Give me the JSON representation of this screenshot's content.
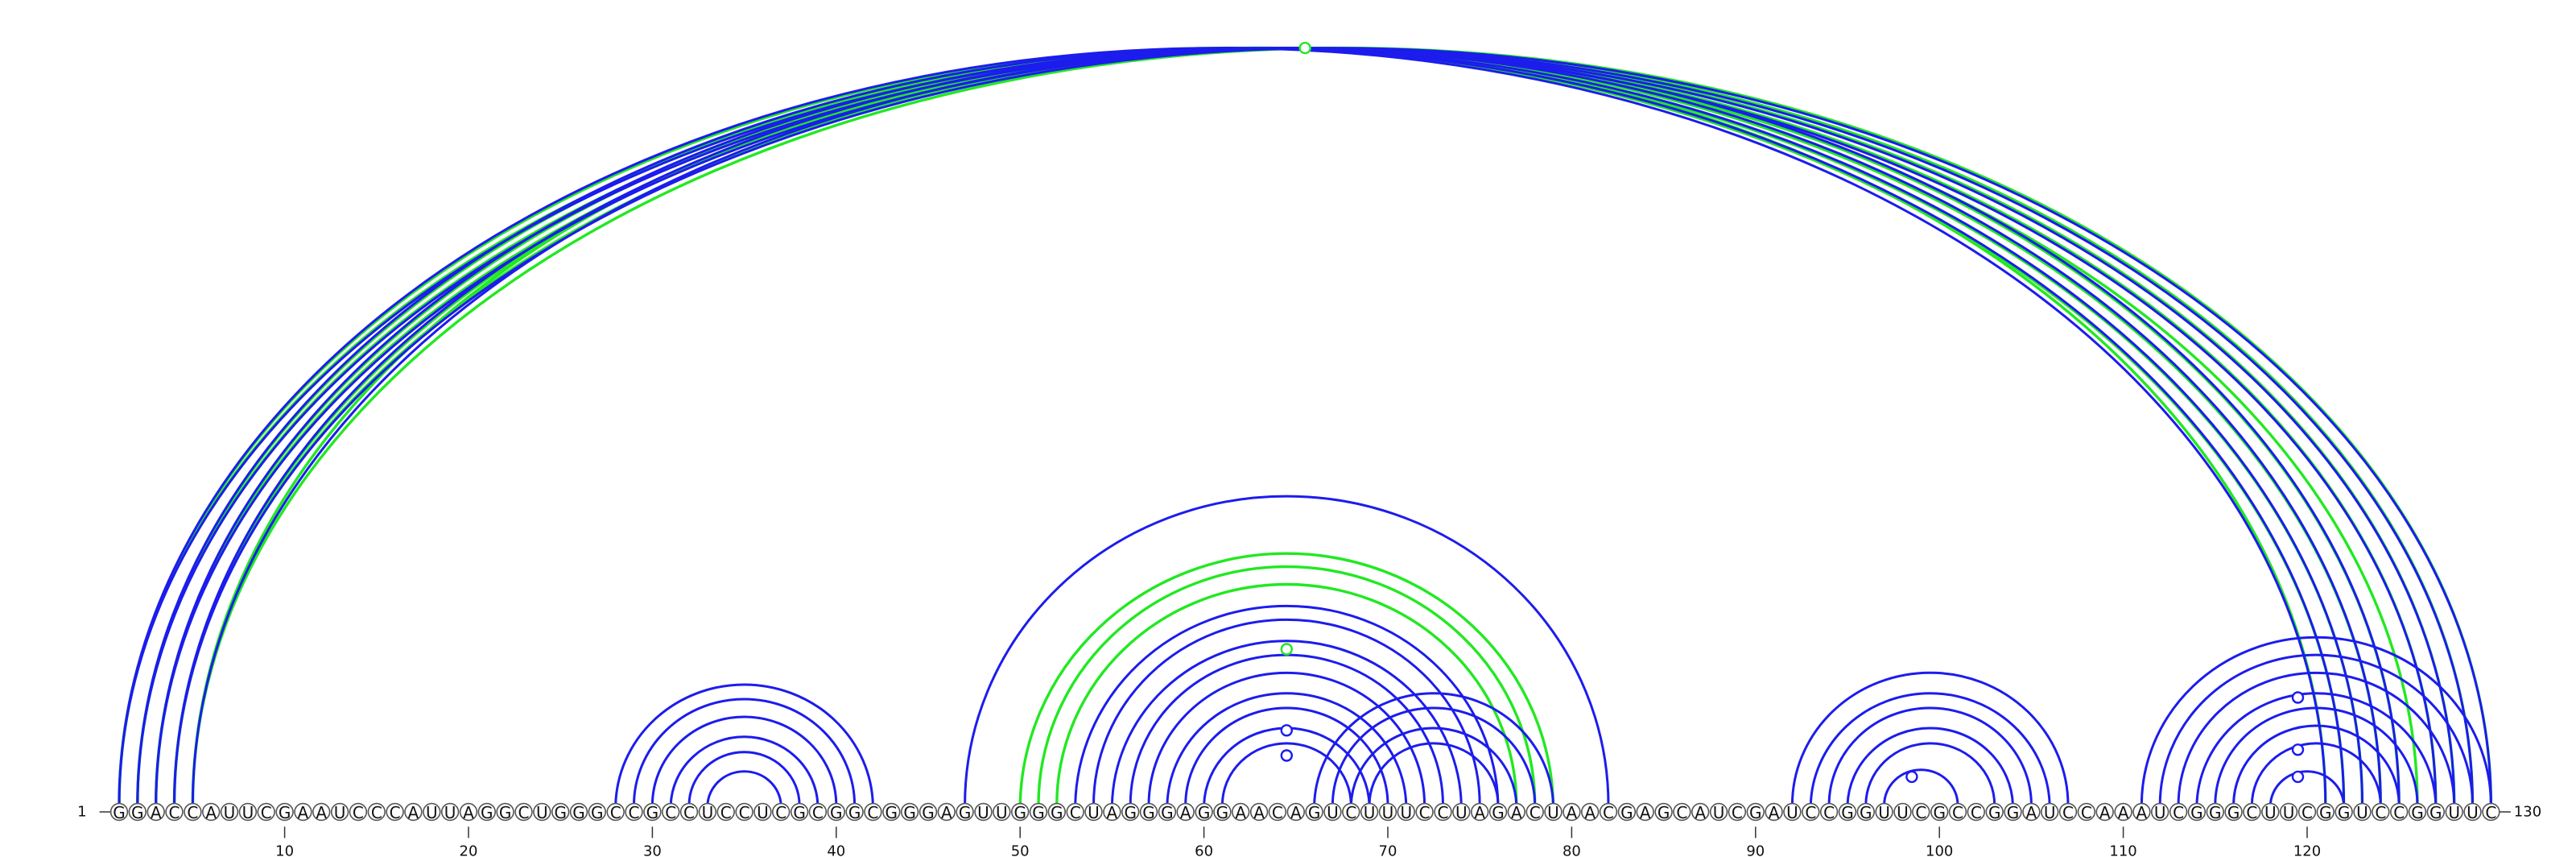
{
  "sequence": "GGACCAUUCGAAUCCCAUUAGGCUGGGCCGCCUCCUCGCGGCGGGAGUUGGGCUAGGGAGGAACAGUCUUUCCUAGACUAACGAGCAUCGAUCCGGUUCGCCGGAUCCAAAUCGGGCUUCGGUCCGGUUC",
  "start_label": "1",
  "end_label": "130",
  "ticks": [
    "10",
    "20",
    "30",
    "40",
    "50",
    "60",
    "70",
    "80",
    "90",
    "100",
    "110",
    "120"
  ],
  "colors": {
    "pair": "#1c1ced",
    "alt_pair": "#22e822"
  },
  "pairs": [
    [
      1,
      121
    ],
    [
      2,
      122
    ],
    [
      3,
      123
    ],
    [
      4,
      124
    ],
    [
      5,
      125
    ],
    [
      1,
      127
    ],
    [
      2,
      128
    ],
    [
      3,
      129
    ],
    [
      4,
      130
    ],
    [
      28,
      42
    ],
    [
      29,
      41
    ],
    [
      30,
      40
    ],
    [
      31,
      39
    ],
    [
      32,
      38
    ],
    [
      33,
      37
    ],
    [
      47,
      82
    ],
    [
      53,
      76
    ],
    [
      54,
      75
    ],
    [
      55,
      74
    ],
    [
      56,
      73
    ],
    [
      57,
      72
    ],
    [
      58,
      71
    ],
    [
      59,
      70
    ],
    [
      60,
      69
    ],
    [
      61,
      68
    ],
    [
      66,
      79
    ],
    [
      67,
      78
    ],
    [
      68,
      77
    ],
    [
      69,
      76
    ],
    [
      92,
      107
    ],
    [
      93,
      106
    ],
    [
      94,
      105
    ],
    [
      95,
      104
    ],
    [
      96,
      103
    ],
    [
      97,
      101
    ],
    [
      111,
      130
    ],
    [
      112,
      129
    ],
    [
      113,
      128
    ],
    [
      114,
      127
    ],
    [
      115,
      126
    ],
    [
      116,
      125
    ],
    [
      117,
      124
    ],
    [
      118,
      122
    ]
  ],
  "alt_pairs": [
    [
      1,
      122
    ],
    [
      2,
      123
    ],
    [
      3,
      124
    ],
    [
      4,
      125
    ],
    [
      5,
      121
    ],
    [
      1,
      126
    ],
    [
      2,
      127
    ],
    [
      3,
      128
    ],
    [
      4,
      129
    ],
    [
      5,
      130
    ],
    [
      50,
      79
    ],
    [
      51,
      78
    ],
    [
      52,
      77
    ]
  ],
  "pair_markers": [
    {
      "pos": 64.5,
      "level": 0.62,
      "color": "pair"
    },
    {
      "pos": 64.5,
      "level": 0.75,
      "color": "pair"
    },
    {
      "pos": 98.5,
      "level": 0.86,
      "color": "pair"
    },
    {
      "pos": 119.5,
      "level": 0.45,
      "color": "pair"
    },
    {
      "pos": 119.5,
      "level": 0.72,
      "color": "pair"
    },
    {
      "pos": 119.5,
      "level": 0.86,
      "color": "pair"
    },
    {
      "pos": 64.5,
      "level": 0.2,
      "color": "alt_pair"
    },
    {
      "pos": 65.5,
      "level": 0.0,
      "color": "alt_pair"
    }
  ]
}
